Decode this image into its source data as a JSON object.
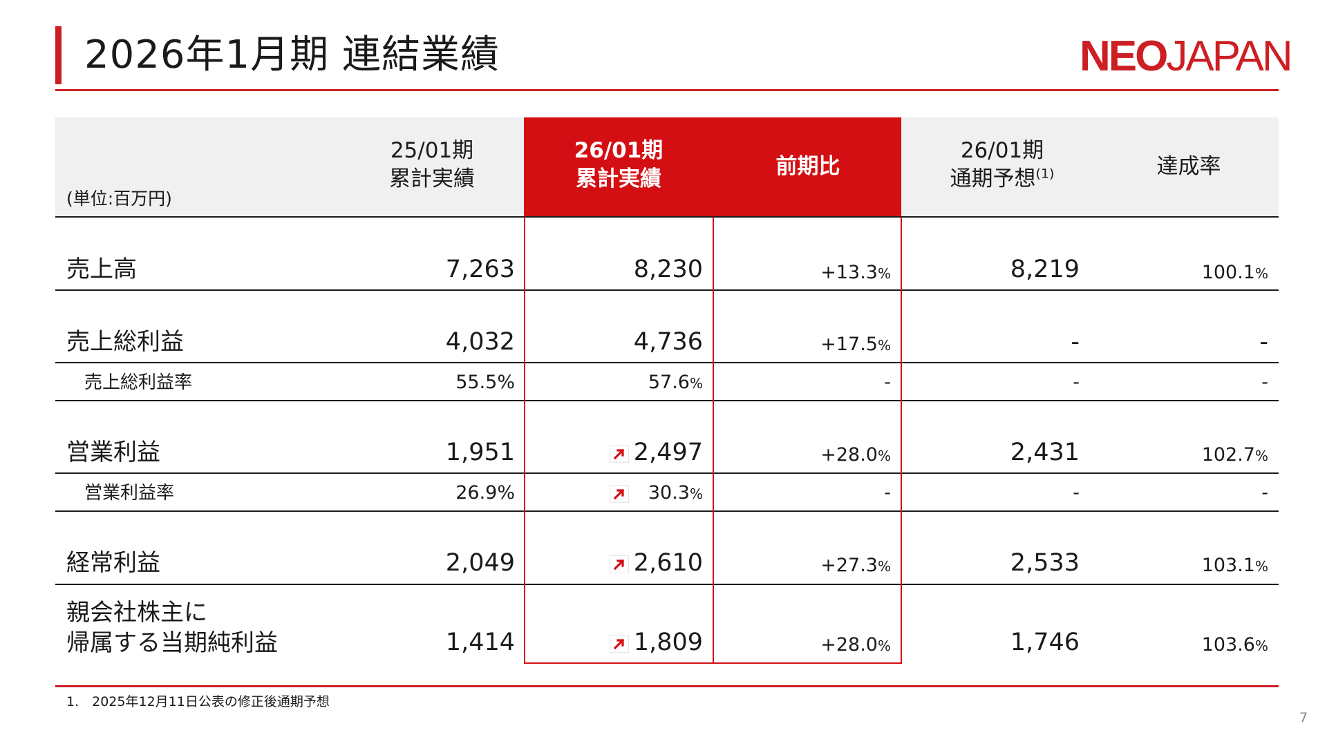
{
  "title": "2026年1月期 連結業績",
  "logo": {
    "bold": "NEO",
    "regular": "JAPAN"
  },
  "header": {
    "unit": "(単位:百万円)",
    "col1": [
      "25/01期",
      "累計実績"
    ],
    "col2": [
      "26/01期",
      "累計実績"
    ],
    "col3": "前期比",
    "col4": [
      "26/01期",
      "通期予想"
    ],
    "col4_note": "(1)",
    "col5": "達成率"
  },
  "rows": [
    {
      "label": "売上高",
      "prev": "7,263",
      "curr": "8,230",
      "yoy": "+13.3",
      "forecast": "8,219",
      "achieve": "100.1"
    },
    {
      "label": "売上総利益",
      "prev": "4,032",
      "curr": "4,736",
      "yoy": "+17.5",
      "forecast": "-",
      "achieve": "-"
    },
    {
      "label": "売上総利益率",
      "prev": "55.5%",
      "curr": "57.6",
      "yoy": "-",
      "forecast": "-",
      "achieve": "-"
    },
    {
      "label": "営業利益",
      "prev": "1,951",
      "curr": "2,497",
      "yoy": "+28.0",
      "forecast": "2,431",
      "achieve": "102.7"
    },
    {
      "label": "営業利益率",
      "prev": "26.9%",
      "curr": "30.3",
      "yoy": "-",
      "forecast": "-",
      "achieve": "-"
    },
    {
      "label": "経常利益",
      "prev": "2,049",
      "curr": "2,610",
      "yoy": "+27.3",
      "forecast": "2,533",
      "achieve": "103.1"
    },
    {
      "label1": "親会社株主に",
      "label2": "帰属する当期純利益",
      "prev": "1,414",
      "curr": "1,809",
      "yoy": "+28.0",
      "forecast": "1,746",
      "achieve": "103.6"
    }
  ],
  "percent_sign": "%",
  "footnote": "1.　2025年12月11日公表の修正後通期予想",
  "page_number": "7",
  "icons": {
    "up_arrow": "up-right-arrow-icon"
  },
  "colors": {
    "accent": "#cc1f24",
    "highlight": "#d40f14"
  }
}
